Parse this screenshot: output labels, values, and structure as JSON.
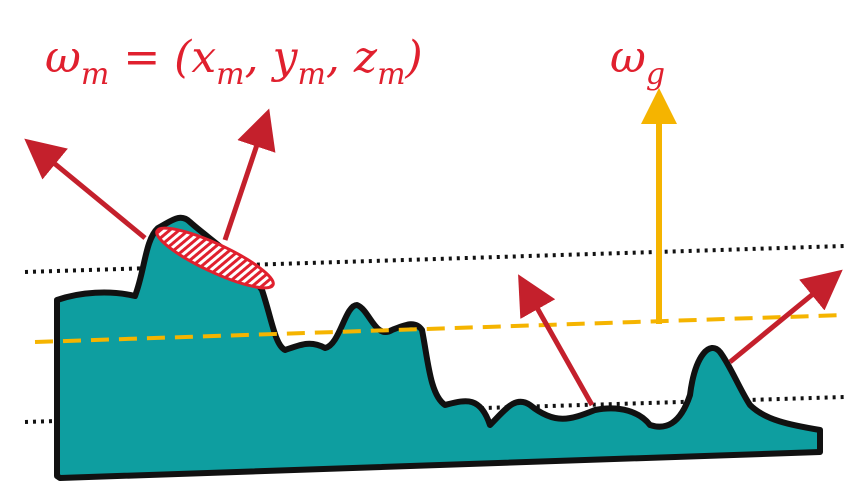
{
  "labels": {
    "microfacet_normal": [
      {
        "text": "ω"
      },
      {
        "sub": "m"
      },
      {
        "text": " = (x"
      },
      {
        "sub": "m"
      },
      {
        "text": ", y"
      },
      {
        "sub": "m"
      },
      {
        "text": ", z"
      },
      {
        "sub": "m"
      },
      {
        "text": ")"
      }
    ],
    "geometric_normal": [
      {
        "text": "ω"
      },
      {
        "sub": "g"
      }
    ]
  }
}
